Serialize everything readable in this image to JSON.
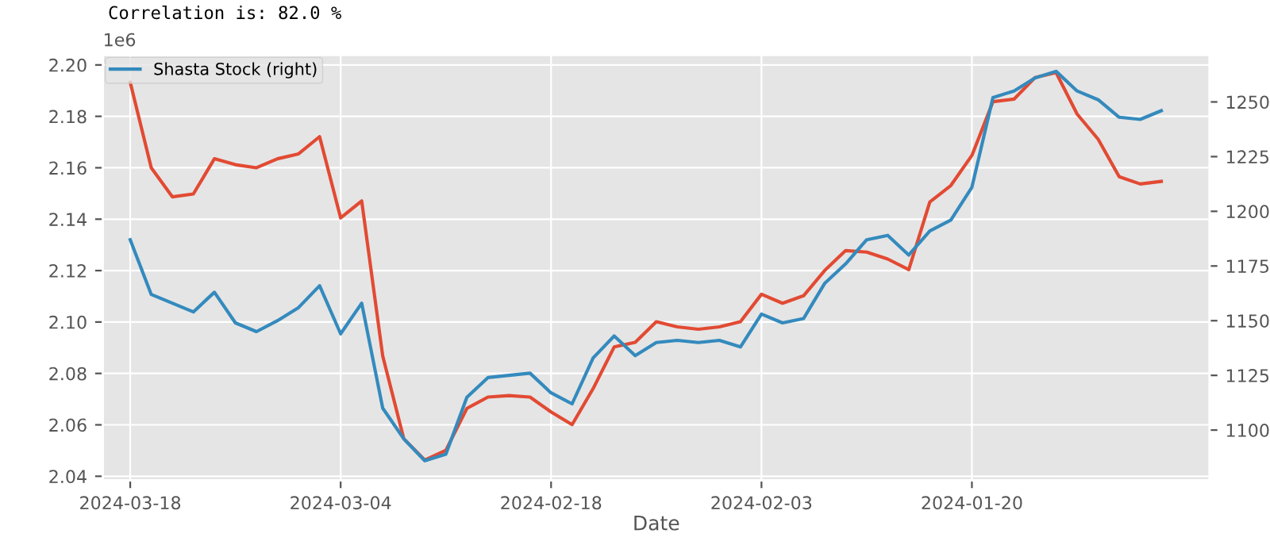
{
  "chart_data": {
    "type": "line",
    "title": "Correlation is: 82.0 %",
    "xlabel": "Date",
    "annotations": [
      "1e6"
    ],
    "categories": [
      "2024-03-18",
      null,
      null,
      null,
      null,
      null,
      null,
      null,
      null,
      null,
      "2024-03-04",
      null,
      null,
      null,
      null,
      null,
      null,
      null,
      null,
      null,
      "2024-02-18",
      null,
      null,
      null,
      null,
      null,
      null,
      null,
      null,
      null,
      "2024-02-03",
      null,
      null,
      null,
      null,
      null,
      null,
      null,
      null,
      null,
      "2024-01-20",
      null,
      null,
      null,
      null,
      null,
      null,
      null,
      null,
      null
    ],
    "series": [
      {
        "color": "#e24a33",
        "values": [
          2.1932,
          2.16,
          2.1487,
          2.1498,
          2.1635,
          2.1612,
          2.16,
          2.1635,
          2.1654,
          2.1721,
          2.1405,
          2.1471,
          2.0868,
          2.0546,
          2.0463,
          2.0501,
          2.0664,
          2.0708,
          2.0714,
          2.0708,
          2.065,
          2.0601,
          2.0741,
          2.0903,
          2.0921,
          2.1001,
          2.0981,
          2.0972,
          2.0981,
          2.1001,
          2.1108,
          2.1073,
          2.1102,
          2.12,
          2.1278,
          2.1272,
          2.1245,
          2.1204,
          2.1467,
          2.1531,
          2.1648,
          2.1857,
          2.1867,
          2.1951,
          2.197,
          2.1809,
          2.1711,
          2.1565,
          2.1537,
          2.1547
        ]
      },
      {
        "name": "Shasta Stock (right)",
        "color": "#348abd",
        "axis": "y2",
        "values": [
          1187,
          1162,
          1158,
          1154,
          1163,
          1149,
          1145,
          1150,
          1156,
          1166,
          1144,
          1158,
          1110,
          1096,
          1086,
          1089,
          1115,
          1124,
          1125,
          1126,
          1117,
          1112,
          1133,
          1143,
          1134,
          1140,
          1141,
          1140,
          1141,
          1138,
          1153,
          1149,
          1151,
          1167,
          1176,
          1187,
          1189,
          1180,
          1191,
          1196,
          1211,
          1252,
          1255,
          1261,
          1264,
          1255,
          1251,
          1243,
          1242,
          1246
        ]
      }
    ],
    "ylim": [
      2.0384,
      2.2039
    ],
    "yticks": [
      {
        "value": 2.04,
        "label": "2.04"
      },
      {
        "value": 2.06,
        "label": "2.06"
      },
      {
        "value": 2.08,
        "label": "2.08"
      },
      {
        "value": 2.1,
        "label": "2.10"
      },
      {
        "value": 2.12,
        "label": "2.12"
      },
      {
        "value": 2.14,
        "label": "2.14"
      },
      {
        "value": 2.16,
        "label": "2.16"
      },
      {
        "value": 2.18,
        "label": "2.18"
      },
      {
        "value": 2.2,
        "label": "2.20"
      }
    ],
    "y2lim": [
      1077,
      1271.5
    ],
    "y2ticks": [
      1100,
      1125,
      1150,
      1175,
      1200,
      1225,
      1250
    ],
    "grid": true,
    "legend": "top left",
    "line_style": "solid",
    "marker": "none"
  }
}
